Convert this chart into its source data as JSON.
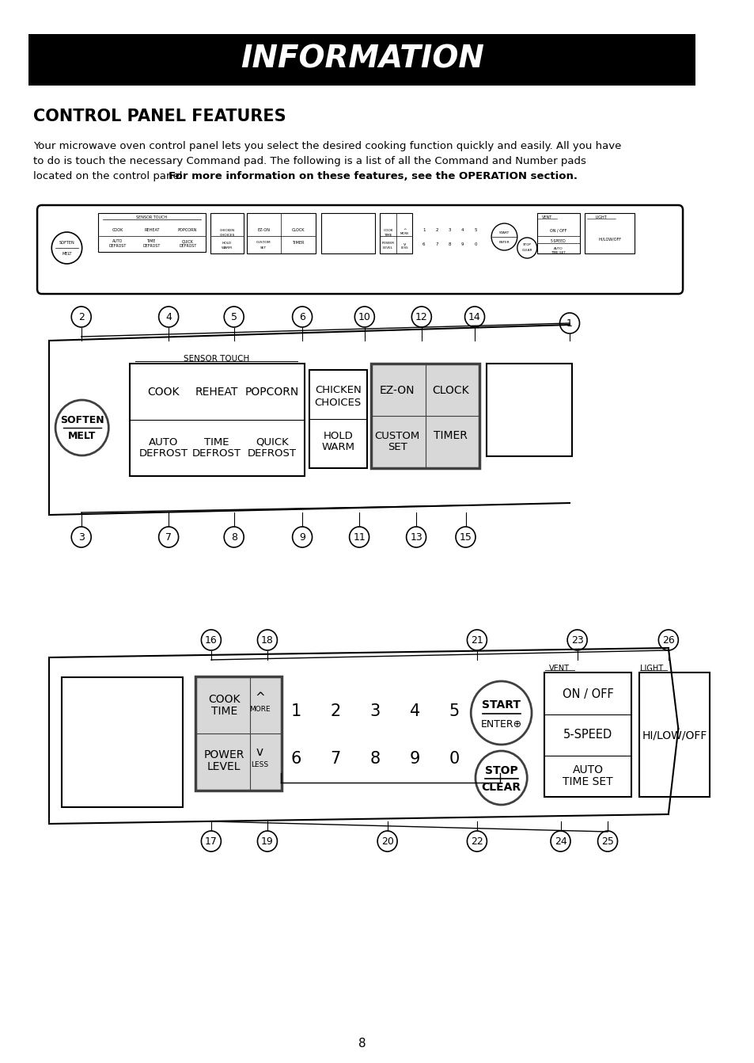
{
  "title": "INFORMATION",
  "section_title": "CONTROL PANEL FEATURES",
  "body_line1": "Your microwave oven control panel lets you select the desired cooking function quickly and easily. All you have",
  "body_line2": "to do is touch the necessary Command pad. The following is a list of all the Command and Number pads",
  "body_line3_regular": "located on the control panel. ",
  "body_line3_bold": "For more information on these features, see the OPERATION section.",
  "page_number": "8",
  "bg_color": "#ffffff",
  "title_bg": "#000000",
  "title_color": "#ffffff"
}
